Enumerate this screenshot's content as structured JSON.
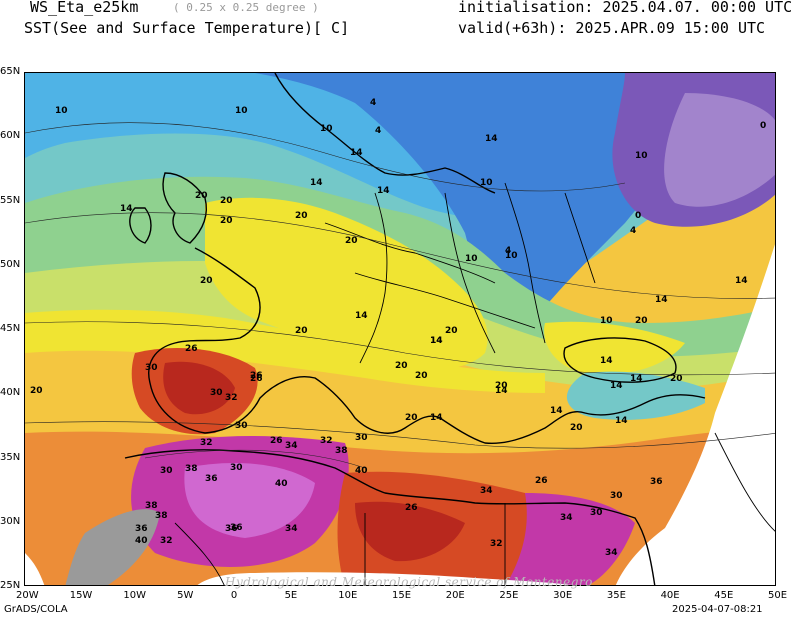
{
  "header": {
    "model": "WS_Eta_e25km",
    "resolution": "( 0.25 x 0.25 degree )",
    "variable": "SST(See and Surface Temperature)[ C]",
    "initialisation": "initialisation: 2025.04.07. 00:00 UTC",
    "valid": "valid(+63h): 2025.APR.09 15:00 UTC"
  },
  "map": {
    "lat_ticks": [
      "65N",
      "60N",
      "55N",
      "50N",
      "45N",
      "40N",
      "35N",
      "30N",
      "25N"
    ],
    "lon_ticks": [
      "20W",
      "15W",
      "10W",
      "5W",
      "0",
      "5E",
      "10E",
      "15E",
      "20E",
      "25E",
      "30E",
      "35E",
      "40E",
      "45E",
      "50E"
    ],
    "contour_labels": [
      "4",
      "10",
      "10",
      "10",
      "14",
      "14",
      "10",
      "4",
      "10",
      "0",
      "14",
      "20",
      "20",
      "14",
      "0",
      "4",
      "14",
      "20",
      "20",
      "20",
      "20",
      "20",
      "14",
      "10",
      "4",
      "14",
      "10",
      "20",
      "20",
      "14",
      "14",
      "14",
      "10",
      "14",
      "20",
      "20",
      "14",
      "26",
      "14",
      "14",
      "20",
      "20",
      "14",
      "14",
      "20",
      "20",
      "20",
      "26",
      "30",
      "32",
      "26",
      "30",
      "30",
      "34",
      "26",
      "32",
      "30",
      "32",
      "38",
      "36",
      "40",
      "30",
      "34",
      "36",
      "38",
      "40",
      "36",
      "36",
      "38",
      "32",
      "38",
      "40",
      "34",
      "26",
      "32",
      "30",
      "30",
      "34",
      "34",
      "30",
      "26",
      "36",
      "14"
    ],
    "watermark": "Hydrological and Meteorological service of Montenegro",
    "palette": {
      "c0": "#7b58b8",
      "c4": "#3f82d8",
      "c10": "#4fb3e6",
      "c12": "#74c8c8",
      "c14": "#8fd18f",
      "c17": "#c9e06a",
      "c20": "#f0e432",
      "c22": "#f4c640",
      "c26": "#ec8d38",
      "c30": "#d64a24",
      "c32": "#b8281e",
      "c36": "#c238a8",
      "c40": "#d068d0",
      "land": "#ffffff",
      "desert": "#9a9a9a"
    }
  },
  "footer": {
    "software": "GrADS/COLA",
    "timestamp": "2025-04-07-08:21"
  }
}
